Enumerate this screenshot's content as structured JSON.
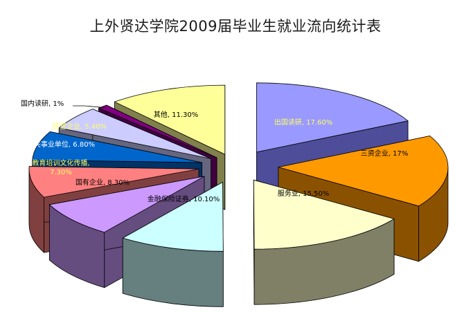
{
  "chart_data": {
    "type": "pie",
    "title": "上外贤达学院2009届毕业生就业流向统计表",
    "slices": [
      {
        "label": "出国读研",
        "display": "出国读研, 17.60%",
        "value": 17.6,
        "top": "#9999ff",
        "side": "#4d4d99",
        "label_color": "#ffff66"
      },
      {
        "label": "三资企业",
        "display": "三资企业, 17%",
        "value": 17.0,
        "top": "#ff9900",
        "side": "#8a5200",
        "label_color": "#000000"
      },
      {
        "label": "服务业",
        "display": "服务业, 15.50%",
        "value": 15.5,
        "top": "#ffffcc",
        "side": "#808066",
        "label_color": "#000000"
      },
      {
        "label": "金融保险证券",
        "display": "金融保险证券, 10.10%",
        "value": 10.1,
        "top": "#ccffff",
        "side": "#668080",
        "label_color": "#000000"
      },
      {
        "label": "国有企业",
        "display": "国有企业, 8.30%",
        "value": 8.3,
        "top": "#cc99ff",
        "side": "#664d80",
        "label_color": "#000000"
      },
      {
        "label": "教育培训文化传播",
        "display": "教育培训文化传播, 7.30%",
        "value": 7.3,
        "top": "#ff8080",
        "side": "#804040",
        "label_color": "#ffff66"
      },
      {
        "label": "机关事业单位",
        "display": "机关事业单位, 6.80%",
        "value": 6.8,
        "top": "#0066cc",
        "side": "#003366",
        "label_color": "#ffffff"
      },
      {
        "label": "民营企业",
        "display": "民营企业, 5.40%",
        "value": 5.4,
        "top": "#ccccff",
        "side": "#666680",
        "label_color": "#ffff66"
      },
      {
        "label": "国内读研",
        "display": "国内读研, 1%",
        "value": 1.0,
        "top": "#800080",
        "side": "#400040",
        "label_color": "#000000"
      },
      {
        "label": "其他",
        "display": "其他, 11.30%",
        "value": 11.3,
        "top": "#ffff99",
        "side": "#80804d",
        "label_color": "#000000"
      }
    ]
  }
}
